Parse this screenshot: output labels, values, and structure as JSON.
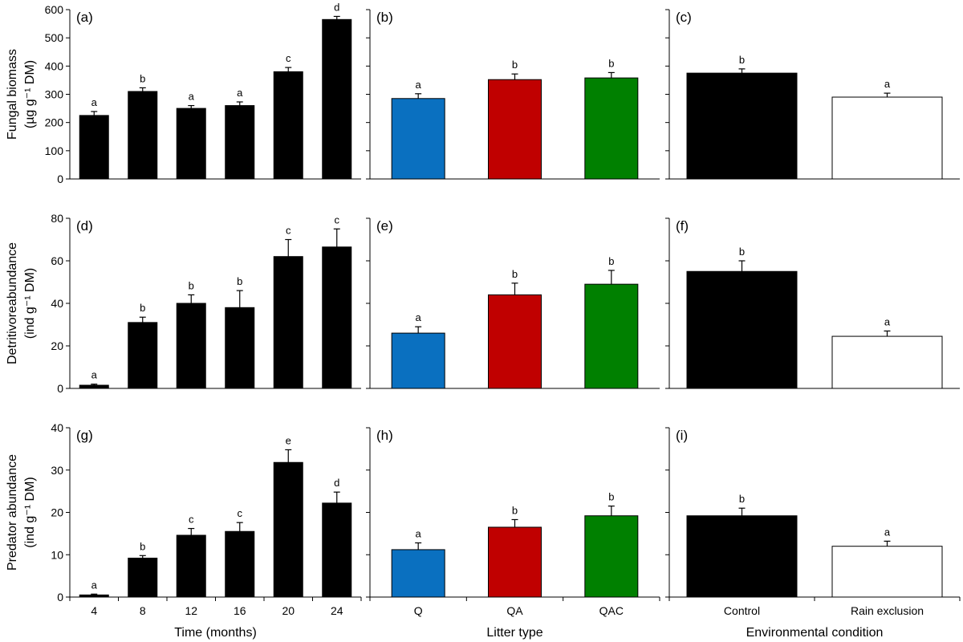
{
  "colors": {
    "black": "#000000",
    "white": "#ffffff",
    "Q": "#0a70c0",
    "QA": "#c00000",
    "QAC": "#008000"
  },
  "chart_data": [
    {
      "id": "a",
      "type": "bar",
      "panel_label": "(a)",
      "categories": [
        "4",
        "8",
        "12",
        "16",
        "20",
        "24"
      ],
      "values": [
        225,
        310,
        250,
        260,
        380,
        565
      ],
      "errors": [
        14,
        13,
        10,
        13,
        15,
        11
      ],
      "letters": [
        "a",
        "b",
        "a",
        "a",
        "c",
        "d"
      ],
      "colors": [
        "#000000",
        "#000000",
        "#000000",
        "#000000",
        "#000000",
        "#000000"
      ],
      "ylim": [
        0,
        600
      ],
      "yticks": [
        0,
        100,
        200,
        300,
        400,
        500,
        600
      ],
      "ylabel": [
        "Fungal biomass",
        "(µg g⁻¹ DM)"
      ],
      "xlabel": ""
    },
    {
      "id": "b",
      "type": "bar",
      "panel_label": "(b)",
      "categories": [
        "Q",
        "QA",
        "QAC"
      ],
      "values": [
        285,
        352,
        358
      ],
      "errors": [
        17,
        20,
        19
      ],
      "letters": [
        "a",
        "b",
        "b"
      ],
      "colors": [
        "#0a70c0",
        "#c00000",
        "#008000"
      ],
      "ylim": [
        0,
        600
      ],
      "yticks": [
        0,
        100,
        200,
        300,
        400,
        500,
        600
      ],
      "xlabel": ""
    },
    {
      "id": "c",
      "type": "bar",
      "panel_label": "(c)",
      "categories": [
        "Control",
        "Rain exclusion"
      ],
      "values": [
        375,
        290
      ],
      "errors": [
        15,
        14
      ],
      "letters": [
        "b",
        "a"
      ],
      "colors": [
        "#000000",
        "#ffffff"
      ],
      "ylim": [
        0,
        600
      ],
      "yticks": [
        0,
        100,
        200,
        300,
        400,
        500,
        600
      ],
      "xlabel": ""
    },
    {
      "id": "d",
      "type": "bar",
      "panel_label": "(d)",
      "categories": [
        "4",
        "8",
        "12",
        "16",
        "20",
        "24"
      ],
      "values": [
        1.5,
        31,
        40,
        38,
        62,
        66.5
      ],
      "errors": [
        0.5,
        2.5,
        4,
        8,
        8,
        8.5
      ],
      "letters": [
        "a",
        "b",
        "b",
        "b",
        "c",
        "c"
      ],
      "colors": [
        "#000000",
        "#000000",
        "#000000",
        "#000000",
        "#000000",
        "#000000"
      ],
      "ylim": [
        0,
        80
      ],
      "yticks": [
        0,
        20,
        40,
        60,
        80
      ],
      "ylabel": [
        "Detritivoreabundance",
        "(ind g⁻¹ DM)"
      ],
      "xlabel": ""
    },
    {
      "id": "e",
      "type": "bar",
      "panel_label": "(e)",
      "categories": [
        "Q",
        "QA",
        "QAC"
      ],
      "values": [
        26,
        44,
        49
      ],
      "errors": [
        3,
        5.5,
        6.5
      ],
      "letters": [
        "a",
        "b",
        "b"
      ],
      "colors": [
        "#0a70c0",
        "#c00000",
        "#008000"
      ],
      "ylim": [
        0,
        80
      ],
      "yticks": [
        0,
        20,
        40,
        60,
        80
      ],
      "xlabel": ""
    },
    {
      "id": "f",
      "type": "bar",
      "panel_label": "(f)",
      "categories": [
        "Control",
        "Rain exclusion"
      ],
      "values": [
        55,
        24.5
      ],
      "errors": [
        5,
        2.5
      ],
      "letters": [
        "b",
        "a"
      ],
      "colors": [
        "#000000",
        "#ffffff"
      ],
      "ylim": [
        0,
        80
      ],
      "yticks": [
        0,
        20,
        40,
        60,
        80
      ],
      "xlabel": ""
    },
    {
      "id": "g",
      "type": "bar",
      "panel_label": "(g)",
      "categories": [
        "4",
        "8",
        "12",
        "16",
        "20",
        "24"
      ],
      "values": [
        0.5,
        9.2,
        14.6,
        15.5,
        31.8,
        22.2
      ],
      "errors": [
        0.2,
        0.6,
        1.6,
        2.1,
        3.0,
        2.6
      ],
      "letters": [
        "a",
        "b",
        "c",
        "c",
        "e",
        "d"
      ],
      "colors": [
        "#000000",
        "#000000",
        "#000000",
        "#000000",
        "#000000",
        "#000000"
      ],
      "ylim": [
        0,
        40
      ],
      "yticks": [
        0,
        10,
        20,
        30,
        40
      ],
      "ylabel": [
        "Predator abundance",
        "(ind g⁻¹ DM)"
      ],
      "xlabel": "Time (months)"
    },
    {
      "id": "h",
      "type": "bar",
      "panel_label": "(h)",
      "categories": [
        "Q",
        "QA",
        "QAC"
      ],
      "values": [
        11.2,
        16.5,
        19.2
      ],
      "errors": [
        1.6,
        1.8,
        2.3
      ],
      "letters": [
        "a",
        "b",
        "b"
      ],
      "colors": [
        "#0a70c0",
        "#c00000",
        "#008000"
      ],
      "ylim": [
        0,
        40
      ],
      "yticks": [
        0,
        10,
        20,
        30,
        40
      ],
      "xlabel": "Litter type"
    },
    {
      "id": "i",
      "type": "bar",
      "panel_label": "(i)",
      "categories": [
        "Control",
        "Rain exclusion"
      ],
      "values": [
        19.2,
        12.0
      ],
      "errors": [
        1.8,
        1.2
      ],
      "letters": [
        "b",
        "a"
      ],
      "colors": [
        "#000000",
        "#ffffff"
      ],
      "ylim": [
        0,
        40
      ],
      "yticks": [
        0,
        10,
        20,
        30,
        40
      ],
      "xlabel": "Environmental condition"
    }
  ]
}
